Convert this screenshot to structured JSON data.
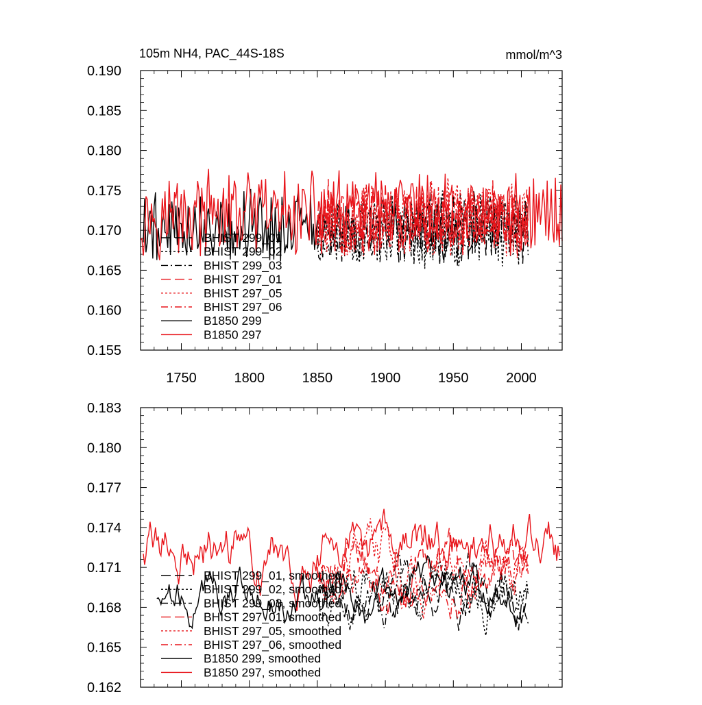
{
  "chart_data": [
    {
      "type": "line",
      "title_left": "105m NH4, PAC_44S-18S",
      "title_right": "mmol/m^3",
      "xlim": [
        1720,
        2030
      ],
      "ylim": [
        0.155,
        0.19
      ],
      "x_ticks": [
        1750,
        1800,
        1850,
        1900,
        1950,
        2000
      ],
      "x_tick_labels": [
        "1750",
        "1800",
        "1850",
        "1900",
        "1950",
        "2000"
      ],
      "y_ticks": [
        0.155,
        0.16,
        0.165,
        0.17,
        0.175,
        0.18,
        0.185,
        0.19
      ],
      "y_tick_labels": [
        "0.155",
        "0.160",
        "0.165",
        "0.170",
        "0.175",
        "0.180",
        "0.185",
        "0.190"
      ],
      "legend_position": "lower-left",
      "series": [
        {
          "name": "BHIST 299_01",
          "color": "#000000",
          "dash": "long-dash",
          "x_start": 1850,
          "x_end": 2005,
          "mean": 0.1703,
          "amp": 0.0038,
          "seed": 11
        },
        {
          "name": "BHIST 299_02",
          "color": "#000000",
          "dash": "dot",
          "x_start": 1850,
          "x_end": 2005,
          "mean": 0.17,
          "amp": 0.004,
          "seed": 23
        },
        {
          "name": "BHIST 299_03",
          "color": "#000000",
          "dash": "dash-dot",
          "x_start": 1850,
          "x_end": 2005,
          "mean": 0.1702,
          "amp": 0.0037,
          "seed": 37
        },
        {
          "name": "BHIST 297_01",
          "color": "#e8141a",
          "dash": "long-dash",
          "x_start": 1850,
          "x_end": 2005,
          "mean": 0.1715,
          "amp": 0.004,
          "seed": 41
        },
        {
          "name": "BHIST 297_05",
          "color": "#e8141a",
          "dash": "dot",
          "x_start": 1850,
          "x_end": 2005,
          "mean": 0.1713,
          "amp": 0.0042,
          "seed": 53
        },
        {
          "name": "BHIST 297_06",
          "color": "#e8141a",
          "dash": "dash-dot",
          "x_start": 1850,
          "x_end": 2005,
          "mean": 0.1714,
          "amp": 0.004,
          "seed": 67
        },
        {
          "name": "B1850 299",
          "color": "#000000",
          "dash": "solid",
          "x_start": 1722,
          "x_end": 1850,
          "mean": 0.1705,
          "amp": 0.004,
          "seed": 79
        },
        {
          "name": "B1850 297",
          "color": "#e8141a",
          "dash": "solid",
          "x_start": 1720,
          "x_end": 2030,
          "mean": 0.172,
          "amp": 0.0045,
          "seed": 97
        }
      ]
    },
    {
      "type": "line",
      "xlim": [
        1720,
        2030
      ],
      "ylim": [
        0.162,
        0.183
      ],
      "y_ticks": [
        0.162,
        0.165,
        0.168,
        0.171,
        0.174,
        0.177,
        0.18,
        0.183
      ],
      "y_tick_labels": [
        "0.162",
        "0.165",
        "0.168",
        "0.171",
        "0.174",
        "0.177",
        "0.180",
        "0.183"
      ],
      "x_ticks": [
        1750,
        1800,
        1850,
        1900,
        1950,
        2000
      ],
      "legend_position": "lower-left",
      "series": [
        {
          "name": "BHIST 299_01, smoothed",
          "color": "#000000",
          "dash": "long-dash",
          "x_start": 1850,
          "x_end": 2005,
          "mean": 0.169,
          "amp": 0.0022,
          "seed": 111
        },
        {
          "name": "BHIST 299_02, smoothed",
          "color": "#000000",
          "dash": "dot",
          "x_start": 1850,
          "x_end": 2005,
          "mean": 0.1692,
          "amp": 0.0025,
          "seed": 123
        },
        {
          "name": "BHIST 299_03, smoothed",
          "color": "#000000",
          "dash": "dash-dot",
          "x_start": 1850,
          "x_end": 2005,
          "mean": 0.1693,
          "amp": 0.0022,
          "seed": 137
        },
        {
          "name": "BHIST 297_01, smoothed",
          "color": "#e8141a",
          "dash": "long-dash",
          "x_start": 1850,
          "x_end": 2005,
          "mean": 0.1715,
          "amp": 0.0025,
          "seed": 141
        },
        {
          "name": "BHIST 297_05, smoothed",
          "color": "#e8141a",
          "dash": "dot",
          "x_start": 1850,
          "x_end": 2005,
          "mean": 0.1712,
          "amp": 0.0028,
          "seed": 153
        },
        {
          "name": "BHIST 297_06, smoothed",
          "color": "#e8141a",
          "dash": "dash-dot",
          "x_start": 1850,
          "x_end": 2005,
          "mean": 0.171,
          "amp": 0.0025,
          "seed": 167
        },
        {
          "name": "B1850 299, smoothed",
          "color": "#000000",
          "dash": "solid",
          "x_start": 1732,
          "x_end": 2000,
          "mean": 0.169,
          "amp": 0.002,
          "seed": 179
        },
        {
          "name": "B1850 297, smoothed",
          "color": "#e8141a",
          "dash": "solid",
          "x_start": 1722,
          "x_end": 2028,
          "mean": 0.1725,
          "amp": 0.0028,
          "seed": 197
        }
      ]
    }
  ]
}
